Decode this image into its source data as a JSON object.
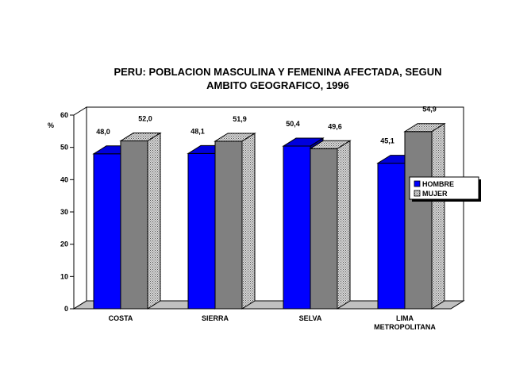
{
  "chart_data": {
    "type": "bar",
    "title_line1": "PERU: POBLACION MASCULINA Y FEMENINA AFECTADA, SEGUN",
    "title_line2": "AMBITO GEOGRAFICO, 1996",
    "ylabel": "%",
    "xlabel": "",
    "ylim": [
      0,
      60
    ],
    "yticks": [
      "0",
      "10",
      "20",
      "30",
      "40",
      "50",
      "60"
    ],
    "categories": [
      "COSTA",
      "SIERRA",
      "SELVA",
      "LIMA METROPOLITANA"
    ],
    "category_lines": [
      [
        "COSTA"
      ],
      [
        "SIERRA"
      ],
      [
        "SELVA"
      ],
      [
        "LIMA",
        "METROPOLITANA"
      ]
    ],
    "series": [
      {
        "name": "HOMBRE",
        "values": [
          48.0,
          48.1,
          50.4,
          45.1
        ],
        "labels": [
          "48,0",
          "48,1",
          "50,4",
          "45,1"
        ],
        "color": "#0000ff",
        "style": "solid"
      },
      {
        "name": "MUJER",
        "values": [
          52.0,
          51.9,
          49.6,
          54.9
        ],
        "labels": [
          "52,0",
          "51,9",
          "49,6",
          "54,9"
        ],
        "color": "#808080",
        "style": "dotted"
      }
    ],
    "legend_position": "right",
    "grid": false,
    "three_d": true
  }
}
